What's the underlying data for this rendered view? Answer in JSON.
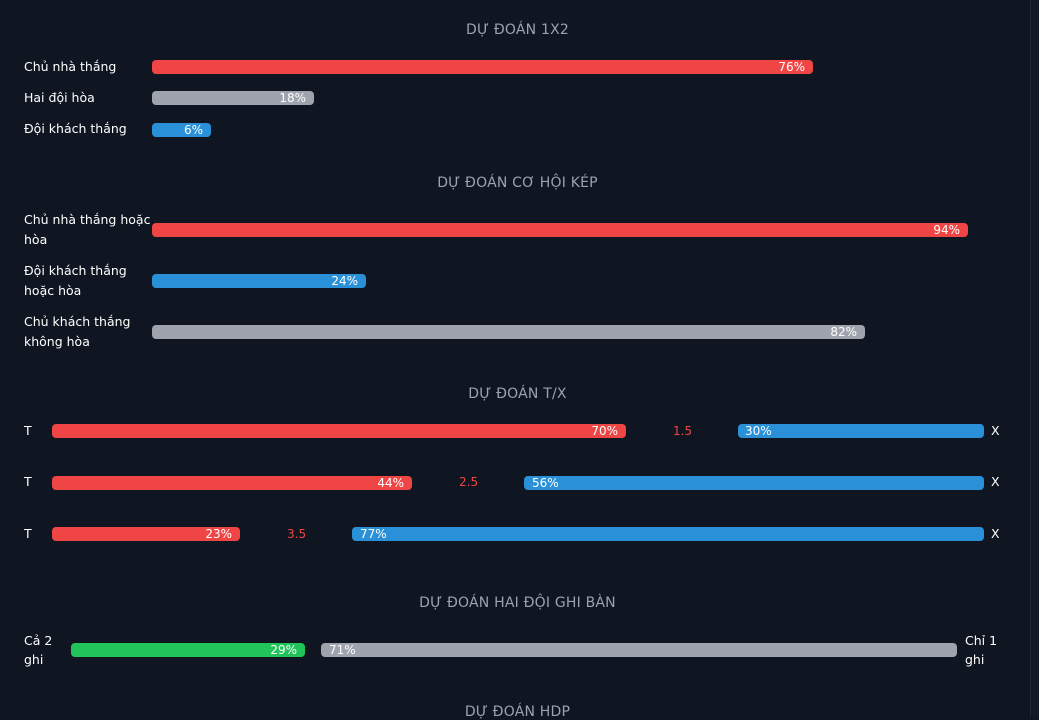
{
  "sections": {
    "s1x2": {
      "title": "DỰ ĐOÁN 1X2",
      "rows": [
        {
          "label": "Chủ nhà thắng",
          "value": "76%",
          "pct": 76,
          "color": "#ef4545"
        },
        {
          "label": "Hai đội hòa",
          "value": "18%",
          "pct": 18,
          "color": "#9ea3ad"
        },
        {
          "label": "Đội khách thắng",
          "value": "6%",
          "pct": 6,
          "color": "#2a91d8"
        }
      ]
    },
    "double": {
      "title": "DỰ ĐOÁN CƠ HỘI KÉP",
      "rows": [
        {
          "label_line1": "Chủ nhà thắng hoặc",
          "label_line2": "hòa",
          "value": "94%",
          "pct": 94,
          "color": "#ef4545"
        },
        {
          "label_line1": "Đội khách thắng",
          "label_line2": "hoặc hòa",
          "value": "24%",
          "pct": 24,
          "color": "#2a91d8"
        },
        {
          "label_line1": "Chủ khách thắng",
          "label_line2": "không hòa",
          "value": "82%",
          "pct": 82,
          "color": "#9ea3ad"
        }
      ]
    },
    "tx": {
      "title": "DỰ ĐOÁN T/X",
      "left_letter": "T",
      "right_letter": "X",
      "rows": [
        {
          "line": "1.5",
          "over": "70%",
          "over_pct": 70,
          "under": "30%",
          "under_pct": 30
        },
        {
          "line": "2.5",
          "over": "44%",
          "over_pct": 44,
          "under": "56%",
          "under_pct": 56
        },
        {
          "line": "3.5",
          "over": "23%",
          "over_pct": 23,
          "under": "77%",
          "under_pct": 77
        }
      ]
    },
    "btts": {
      "title": "DỰ ĐOÁN HAI ĐỘI GHI BÀN",
      "left_line1": "Cả 2",
      "left_line2": "ghi",
      "right_line1": "Chỉ 1",
      "right_line2": "ghi",
      "both": "29%",
      "both_pct": 29,
      "one": "71%",
      "one_pct": 71
    },
    "hdp": {
      "title": "DỰ ĐOÁN HDP"
    }
  }
}
